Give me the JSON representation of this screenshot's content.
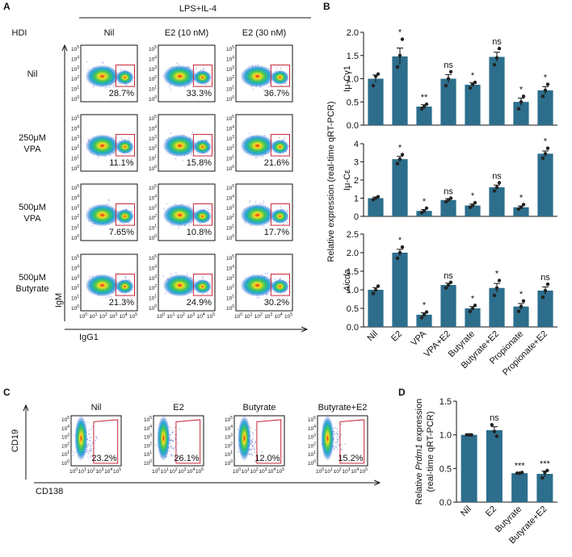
{
  "panels": [
    "A",
    "B",
    "C",
    "D"
  ],
  "flow_ticks": {
    "base": "10",
    "exponents": [
      "0",
      "1",
      "2",
      "3",
      "4",
      "5"
    ]
  },
  "panel_a": {
    "treatment": "LPS+IL-4",
    "hdi_label": "HDI",
    "columns": [
      "Nil",
      "E2 (10 nM)",
      "E2 (30 nM)"
    ],
    "rows": [
      [
        "Nil"
      ],
      [
        "250μM",
        "VPA"
      ],
      [
        "500μM",
        "VPA"
      ],
      [
        "500μM",
        "Butyrate"
      ]
    ],
    "percentages": [
      [
        "28.7%",
        "33.3%",
        "36.7%"
      ],
      [
        "11.1%",
        "15.8%",
        "21.6%"
      ],
      [
        "7.65%",
        "10.8%",
        "17.7%"
      ],
      [
        "21.3%",
        "24.9%",
        "30.2%"
      ]
    ],
    "y_axis": "IgM",
    "x_axis": "IgG1"
  },
  "panel_b": {
    "ylabel": "Relative expression (real-time qRT-PCR)"
  },
  "panel_c": {
    "columns": [
      "Nil",
      "E2",
      "Butyrate",
      "Butyrate+E2"
    ],
    "percentages": [
      "23.2%",
      "26.1%",
      "12.0%",
      "15.2%"
    ],
    "y_axis": "CD19",
    "x_axis": "CD138"
  },
  "chart_data": [
    {
      "type": "bar",
      "label": "Iμ-Cγ1",
      "color": "#2c6e8c",
      "values": [
        1.0,
        1.48,
        0.4,
        1.0,
        0.87,
        1.47,
        0.5,
        0.75
      ],
      "errors": [
        0.08,
        0.18,
        0.04,
        0.09,
        0.04,
        0.1,
        0.08,
        0.08
      ],
      "points": [
        [
          0.85,
          1.05,
          1.1
        ],
        [
          1.25,
          1.5,
          1.85
        ],
        [
          0.35,
          0.4,
          0.45
        ],
        [
          0.85,
          1.0,
          1.15
        ],
        [
          0.8,
          0.88,
          0.92
        ],
        [
          1.3,
          1.45,
          1.65
        ],
        [
          0.35,
          0.5,
          0.62
        ],
        [
          0.62,
          0.75,
          0.88
        ]
      ],
      "significance": [
        null,
        "*",
        "**",
        "ns",
        "*",
        "ns",
        "*",
        "*"
      ],
      "ylim": [
        0,
        2
      ],
      "yticks": [
        {
          "value": 0,
          "label": "0.0"
        },
        0.5,
        {
          "value": 1,
          "label": "1.0"
        },
        1.5,
        {
          "value": 2,
          "label": "2.0"
        }
      ]
    },
    {
      "type": "bar",
      "label": "Iμ-Cε",
      "color": "#2c6e8c",
      "values": [
        1.0,
        3.15,
        0.3,
        0.9,
        0.6,
        1.6,
        0.5,
        3.45
      ],
      "errors": [
        0.06,
        0.15,
        0.08,
        0.07,
        0.08,
        0.12,
        0.07,
        0.15
      ],
      "points": [
        [
          0.92,
          1.0,
          1.08
        ],
        [
          2.9,
          3.15,
          3.4
        ],
        [
          0.2,
          0.3,
          0.45
        ],
        [
          0.8,
          0.9,
          1.0
        ],
        [
          0.5,
          0.6,
          0.75
        ],
        [
          1.4,
          1.6,
          1.85
        ],
        [
          0.4,
          0.5,
          0.65
        ],
        [
          3.2,
          3.45,
          3.75
        ]
      ],
      "significance": [
        null,
        "*",
        "*",
        "ns",
        "*",
        "ns",
        "*",
        "*"
      ],
      "ylim": [
        0,
        4
      ],
      "yticks": [
        0,
        1,
        2,
        3,
        4
      ]
    },
    {
      "type": "bar",
      "label": "Aicda",
      "label_italic": true,
      "color": "#2c6e8c",
      "categories": [
        "Nil",
        "E2",
        "VPA",
        "VPA+E2",
        "Butyrate",
        "Butyrate+E2",
        "Propionate",
        "Propionate+E2"
      ],
      "values": [
        1.0,
        2.0,
        0.33,
        1.13,
        0.5,
        1.05,
        0.55,
        0.98
      ],
      "errors": [
        0.06,
        0.09,
        0.05,
        0.05,
        0.05,
        0.12,
        0.08,
        0.1
      ],
      "points": [
        [
          0.9,
          1.0,
          1.1
        ],
        [
          1.85,
          2.0,
          2.15
        ],
        [
          0.25,
          0.33,
          0.4
        ],
        [
          1.05,
          1.13,
          1.2
        ],
        [
          0.42,
          0.5,
          0.58
        ],
        [
          0.85,
          1.05,
          1.25
        ],
        [
          0.42,
          0.55,
          0.7
        ],
        [
          0.8,
          0.98,
          1.15
        ]
      ],
      "significance": [
        null,
        "*",
        "*",
        "ns",
        "*",
        "*",
        "*",
        "ns"
      ],
      "ylim": [
        0,
        2.5
      ],
      "yticks": [
        {
          "value": 0,
          "label": "0.0"
        },
        0.5,
        {
          "value": 1,
          "label": "1.0"
        },
        1.5,
        {
          "value": 2,
          "label": "2.0"
        },
        2.5
      ]
    },
    {
      "type": "bar",
      "color": "#2c6e8c",
      "ylabel": [
        {
          "text": "Relative "
        },
        {
          "text": "Prdm1",
          "italic": true
        },
        {
          "text": " expression"
        }
      ],
      "ylabel_line2": "(real-time qRT-PCR)",
      "categories": [
        "Nil",
        "E2",
        "Butyrate",
        "Butyrate+E2"
      ],
      "values": [
        1.0,
        1.07,
        0.43,
        0.42
      ],
      "errors": [
        0.01,
        0.05,
        0.01,
        0.04
      ],
      "points": [
        [
          1.0,
          1.0,
          1.0
        ],
        [
          1.15,
          1.05,
          0.98
        ],
        [
          0.43,
          0.43,
          0.44
        ],
        [
          0.36,
          0.44,
          0.47
        ]
      ],
      "significance": [
        null,
        "ns",
        "***",
        "***"
      ],
      "ylim": [
        0,
        1.5
      ],
      "yticks": [
        {
          "value": 0,
          "label": "0.0"
        },
        0.5,
        {
          "value": 1,
          "label": "1.0"
        },
        1.5
      ]
    }
  ]
}
